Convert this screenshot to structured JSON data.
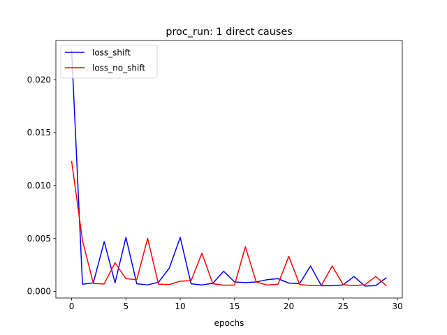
{
  "chart_data": {
    "type": "line",
    "title": "proc_run: 1 direct causes",
    "xlabel": "epochs",
    "ylabel": "",
    "xlim": [
      -1.45,
      30.45
    ],
    "ylim": [
      -0.00063,
      0.0237
    ],
    "xticks": [
      0,
      5,
      10,
      15,
      20,
      25,
      30
    ],
    "xtick_labels": [
      "0",
      "5",
      "10",
      "15",
      "20",
      "25",
      "30"
    ],
    "yticks": [
      0.0,
      0.005,
      0.01,
      0.015,
      0.02
    ],
    "ytick_labels": [
      "0.000",
      "0.005",
      "0.010",
      "0.015",
      "0.020"
    ],
    "grid": false,
    "legend_position": "upper-left",
    "x": [
      0,
      1,
      2,
      3,
      4,
      5,
      6,
      7,
      8,
      9,
      10,
      11,
      12,
      13,
      14,
      15,
      16,
      17,
      18,
      19,
      20,
      21,
      22,
      23,
      24,
      25,
      26,
      27,
      28,
      29
    ],
    "series": [
      {
        "name": "loss_shift",
        "color": "#0000ff",
        "values": [
          0.0228,
          0.00067,
          0.0008,
          0.0047,
          0.0008,
          0.0051,
          0.00071,
          0.00061,
          0.00086,
          0.0022,
          0.0051,
          0.00071,
          0.0006,
          0.00076,
          0.0019,
          0.00089,
          0.00083,
          0.00089,
          0.0011,
          0.0012,
          0.00078,
          0.00074,
          0.0024,
          0.00053,
          0.00053,
          0.00061,
          0.0014,
          0.0005,
          0.00054,
          0.0013
        ]
      },
      {
        "name": "loss_no_shift",
        "color": "#ff0000",
        "values": [
          0.0123,
          0.0048,
          0.00075,
          0.0007,
          0.0027,
          0.0012,
          0.0011,
          0.005,
          0.00068,
          0.00064,
          0.00096,
          0.001,
          0.0036,
          0.00072,
          0.00058,
          0.0006,
          0.0042,
          0.00088,
          0.0006,
          0.00067,
          0.0033,
          0.00064,
          0.00056,
          0.00056,
          0.0024,
          0.00063,
          0.00054,
          0.00062,
          0.0014,
          0.00052
        ]
      }
    ]
  }
}
